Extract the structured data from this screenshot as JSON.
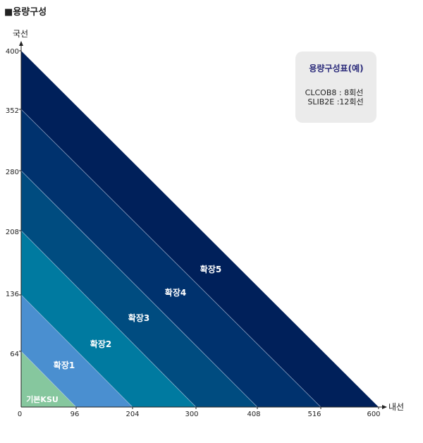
{
  "title": "■용량구성",
  "axes": {
    "y_title": "국선",
    "x_title": "내선",
    "y_ticks": [
      "400",
      "352",
      "280",
      "208",
      "136",
      "64"
    ],
    "x_ticks": [
      "0",
      "96",
      "204",
      "300",
      "408",
      "516",
      "600"
    ]
  },
  "regions": [
    {
      "label": "확장5",
      "color": "#00205a"
    },
    {
      "label": "확장4",
      "color": "#00326e"
    },
    {
      "label": "확장3",
      "color": "#004c80"
    },
    {
      "label": "확장2",
      "color": "#007aa0"
    },
    {
      "label": "확장1",
      "color": "#4a8fd0"
    },
    {
      "label": "기본KSU",
      "color": "#86c79e"
    }
  ],
  "legend": {
    "title": "용량구성표(예)",
    "lines": [
      "CLCOB8 : 8회선",
      "SLIB2E :12회선"
    ]
  }
}
